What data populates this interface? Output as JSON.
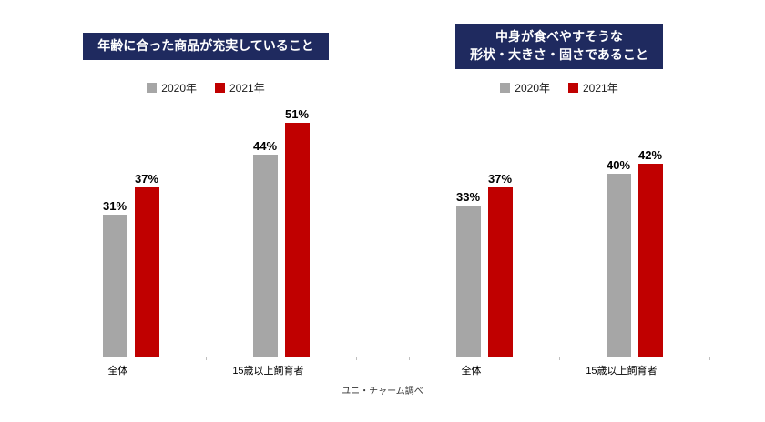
{
  "footer": {
    "source_note": "ユニ・チャーム調べ"
  },
  "colors": {
    "title_bg": "#1f2a5f",
    "series_2020": "#a6a6a6",
    "series_2021": "#c00000",
    "axis": "#bfbfbf"
  },
  "chart_data": [
    {
      "type": "bar",
      "title": "年齢に合った商品が充実していること",
      "title_lines": [
        "年齢に合った商品が充実していること"
      ],
      "categories": [
        "全体",
        "15歳以上飼育者"
      ],
      "series": [
        {
          "name": "2020年",
          "color": "#a6a6a6",
          "values": [
            31,
            44
          ]
        },
        {
          "name": "2021年",
          "color": "#c00000",
          "values": [
            37,
            51
          ]
        }
      ],
      "value_suffix": "%",
      "ylim": [
        0,
        55
      ],
      "grid": false,
      "legend_position": "top"
    },
    {
      "type": "bar",
      "title": "中身が食べやすそうな形状・大きさ・固さであること",
      "title_lines": [
        "中身が食べやすそうな",
        "形状・大きさ・固さであること"
      ],
      "categories": [
        "全体",
        "15歳以上飼育者"
      ],
      "series": [
        {
          "name": "2020年",
          "color": "#a6a6a6",
          "values": [
            33,
            40
          ]
        },
        {
          "name": "2021年",
          "color": "#c00000",
          "values": [
            37,
            42
          ]
        }
      ],
      "value_suffix": "%",
      "ylim": [
        0,
        55
      ],
      "grid": false,
      "legend_position": "top"
    }
  ]
}
